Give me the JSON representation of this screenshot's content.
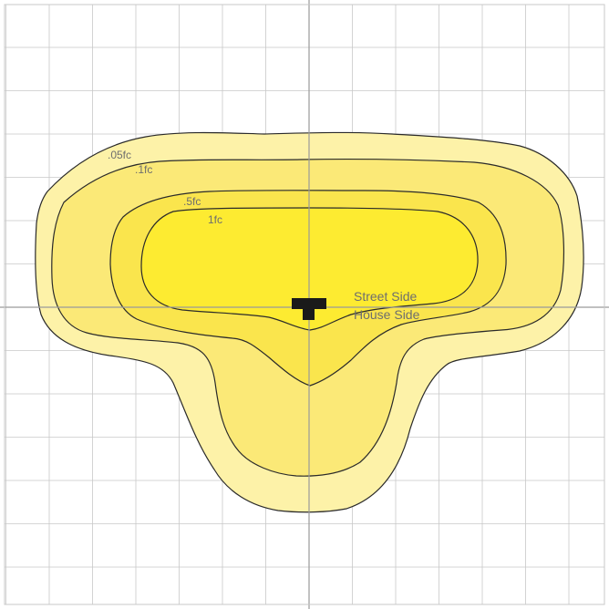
{
  "contours": [
    {
      "label": ".05fc",
      "fill": "#fdf2a8"
    },
    {
      "label": ".1fc",
      "fill": "#fbe977"
    },
    {
      "label": ".5fc",
      "fill": "#fae54d"
    },
    {
      "label": "1fc",
      "fill": "#fdeb31"
    }
  ],
  "orientation": {
    "top": "Street Side",
    "bottom": "House Side"
  },
  "colors": {
    "grid": "#c8c8c8",
    "axis": "#9a9a9a",
    "outline": "#2a2a2a",
    "fixture": "#1a1a1a",
    "label": "#6e6e6e"
  },
  "fixture": {
    "icon": "fixture-icon"
  }
}
